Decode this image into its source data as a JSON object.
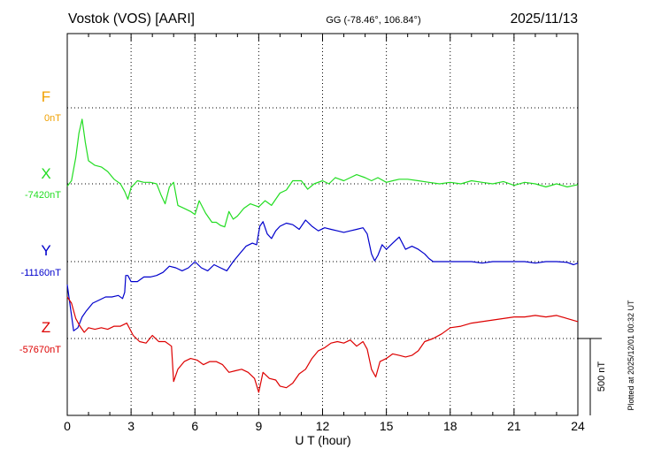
{
  "header": {
    "station": "Vostok (VOS)  [AARI]",
    "coords": "GG (-78.46°, 106.84°)",
    "date": "2025/11/13"
  },
  "side_note": "Plotted at 2025/12/01 00:32 UT",
  "scale_bar_label": "500 nT",
  "chart_data": {
    "type": "line",
    "xlabel": "U T (hour)",
    "xlim": [
      0,
      24
    ],
    "xticks": [
      "0",
      "3",
      "6",
      "9",
      "12",
      "15",
      "18",
      "21",
      "24"
    ],
    "scale_nT": 500,
    "grid": true,
    "series": [
      {
        "name": "F",
        "baseline_label": "0nT",
        "color": "#f0a000",
        "x": [],
        "values": []
      },
      {
        "name": "X",
        "baseline_label": "-7420nT",
        "color": "#22dd22",
        "x": [
          0,
          0.2,
          0.4,
          0.55,
          0.7,
          0.85,
          1.0,
          1.3,
          1.6,
          1.9,
          2.2,
          2.5,
          2.7,
          2.85,
          3.0,
          3.3,
          3.6,
          3.9,
          4.2,
          4.4,
          4.6,
          4.8,
          5.0,
          5.2,
          5.5,
          5.8,
          6.0,
          6.2,
          6.5,
          6.8,
          7.0,
          7.2,
          7.4,
          7.6,
          7.8,
          8.0,
          8.3,
          8.6,
          9.0,
          9.3,
          9.6,
          10.0,
          10.3,
          10.6,
          11.0,
          11.3,
          11.6,
          12.0,
          12.3,
          12.6,
          13.0,
          13.3,
          13.6,
          14.0,
          14.3,
          14.6,
          15.0,
          15.3,
          15.6,
          16.0,
          16.5,
          17.0,
          17.5,
          18.0,
          18.5,
          19.0,
          19.5,
          20.0,
          20.5,
          21.0,
          21.5,
          22.0,
          22.5,
          23.0,
          23.5,
          24.0
        ],
        "values": [
          -15,
          20,
          170,
          330,
          420,
          270,
          150,
          120,
          110,
          80,
          30,
          0,
          -50,
          -100,
          -25,
          20,
          10,
          10,
          0,
          -70,
          -130,
          -20,
          10,
          -140,
          -160,
          -180,
          -200,
          -110,
          -190,
          -250,
          -250,
          -270,
          -280,
          -180,
          -230,
          -210,
          -160,
          -130,
          -150,
          -110,
          -140,
          -60,
          -40,
          20,
          20,
          -35,
          0,
          20,
          0,
          40,
          20,
          40,
          60,
          40,
          20,
          40,
          10,
          20,
          30,
          30,
          20,
          10,
          0,
          10,
          0,
          20,
          10,
          0,
          15,
          -10,
          10,
          0,
          -20,
          0,
          -20,
          -5
        ]
      },
      {
        "name": "Y",
        "baseline_label": "-11160nT",
        "color": "#0000cc",
        "x": [
          0,
          0.15,
          0.3,
          0.5,
          0.7,
          0.9,
          1.2,
          1.5,
          1.8,
          2.1,
          2.4,
          2.6,
          2.7,
          2.75,
          2.85,
          3.0,
          3.3,
          3.6,
          3.9,
          4.2,
          4.5,
          4.8,
          5.1,
          5.4,
          5.7,
          6.0,
          6.3,
          6.6,
          6.9,
          7.2,
          7.5,
          7.8,
          8.1,
          8.4,
          8.7,
          8.9,
          9.05,
          9.2,
          9.4,
          9.6,
          9.8,
          10.0,
          10.3,
          10.6,
          10.9,
          11.2,
          11.5,
          11.8,
          12.1,
          12.4,
          12.7,
          13.0,
          13.3,
          13.6,
          13.9,
          14.1,
          14.3,
          14.45,
          14.6,
          14.8,
          15.0,
          15.3,
          15.6,
          15.9,
          16.2,
          16.5,
          16.8,
          17.0,
          17.2,
          17.5,
          18.0,
          18.5,
          19.0,
          19.5,
          20.0,
          20.5,
          21.0,
          21.5,
          22.0,
          22.5,
          23.0,
          23.5,
          23.8,
          24.0
        ],
        "values": [
          -150,
          -300,
          -450,
          -430,
          -360,
          -320,
          -270,
          -250,
          -230,
          -230,
          -220,
          -240,
          -200,
          -90,
          -90,
          -130,
          -130,
          -100,
          -100,
          -90,
          -70,
          -30,
          -40,
          -60,
          -40,
          0,
          -40,
          -60,
          -20,
          -40,
          -60,
          0,
          50,
          100,
          120,
          110,
          230,
          260,
          180,
          150,
          200,
          230,
          250,
          240,
          210,
          270,
          230,
          200,
          220,
          210,
          200,
          190,
          200,
          210,
          220,
          180,
          50,
          5,
          40,
          110,
          80,
          120,
          160,
          80,
          100,
          80,
          50,
          20,
          0,
          0,
          0,
          0,
          0,
          -10,
          0,
          0,
          0,
          0,
          -10,
          0,
          0,
          -5,
          -20,
          -10
        ]
      },
      {
        "name": "Z",
        "baseline_label": "-57670nT",
        "color": "#dd0000",
        "x": [
          0,
          0.2,
          0.4,
          0.6,
          0.8,
          1.0,
          1.3,
          1.6,
          1.9,
          2.2,
          2.5,
          2.8,
          3.1,
          3.4,
          3.7,
          4.0,
          4.3,
          4.6,
          4.9,
          5.0,
          5.2,
          5.5,
          5.8,
          6.1,
          6.4,
          6.7,
          7.0,
          7.3,
          7.6,
          7.9,
          8.2,
          8.5,
          8.8,
          9.0,
          9.2,
          9.5,
          9.8,
          10.0,
          10.3,
          10.6,
          10.9,
          11.2,
          11.5,
          11.8,
          12.1,
          12.4,
          12.7,
          13.0,
          13.3,
          13.6,
          13.9,
          14.1,
          14.3,
          14.5,
          14.7,
          15.0,
          15.3,
          15.6,
          15.9,
          16.2,
          16.5,
          16.8,
          17.2,
          17.6,
          18.0,
          18.5,
          19.0,
          19.5,
          20.0,
          20.5,
          21.0,
          21.5,
          22.0,
          22.5,
          23.0,
          23.5,
          24.0
        ],
        "values": [
          270,
          230,
          130,
          80,
          40,
          70,
          60,
          70,
          60,
          80,
          80,
          100,
          20,
          -20,
          -30,
          20,
          -20,
          -20,
          -50,
          -280,
          -200,
          -150,
          -130,
          -140,
          -170,
          -150,
          -150,
          -170,
          -220,
          -210,
          -200,
          -220,
          -260,
          -350,
          -220,
          -260,
          -270,
          -310,
          -320,
          -290,
          -230,
          -200,
          -130,
          -80,
          -60,
          -30,
          -20,
          -30,
          -10,
          -50,
          -20,
          -70,
          -200,
          -250,
          -150,
          -130,
          -100,
          -110,
          -120,
          -110,
          -80,
          -20,
          0,
          30,
          70,
          80,
          100,
          110,
          120,
          130,
          140,
          140,
          150,
          140,
          150,
          130,
          110
        ]
      }
    ]
  }
}
